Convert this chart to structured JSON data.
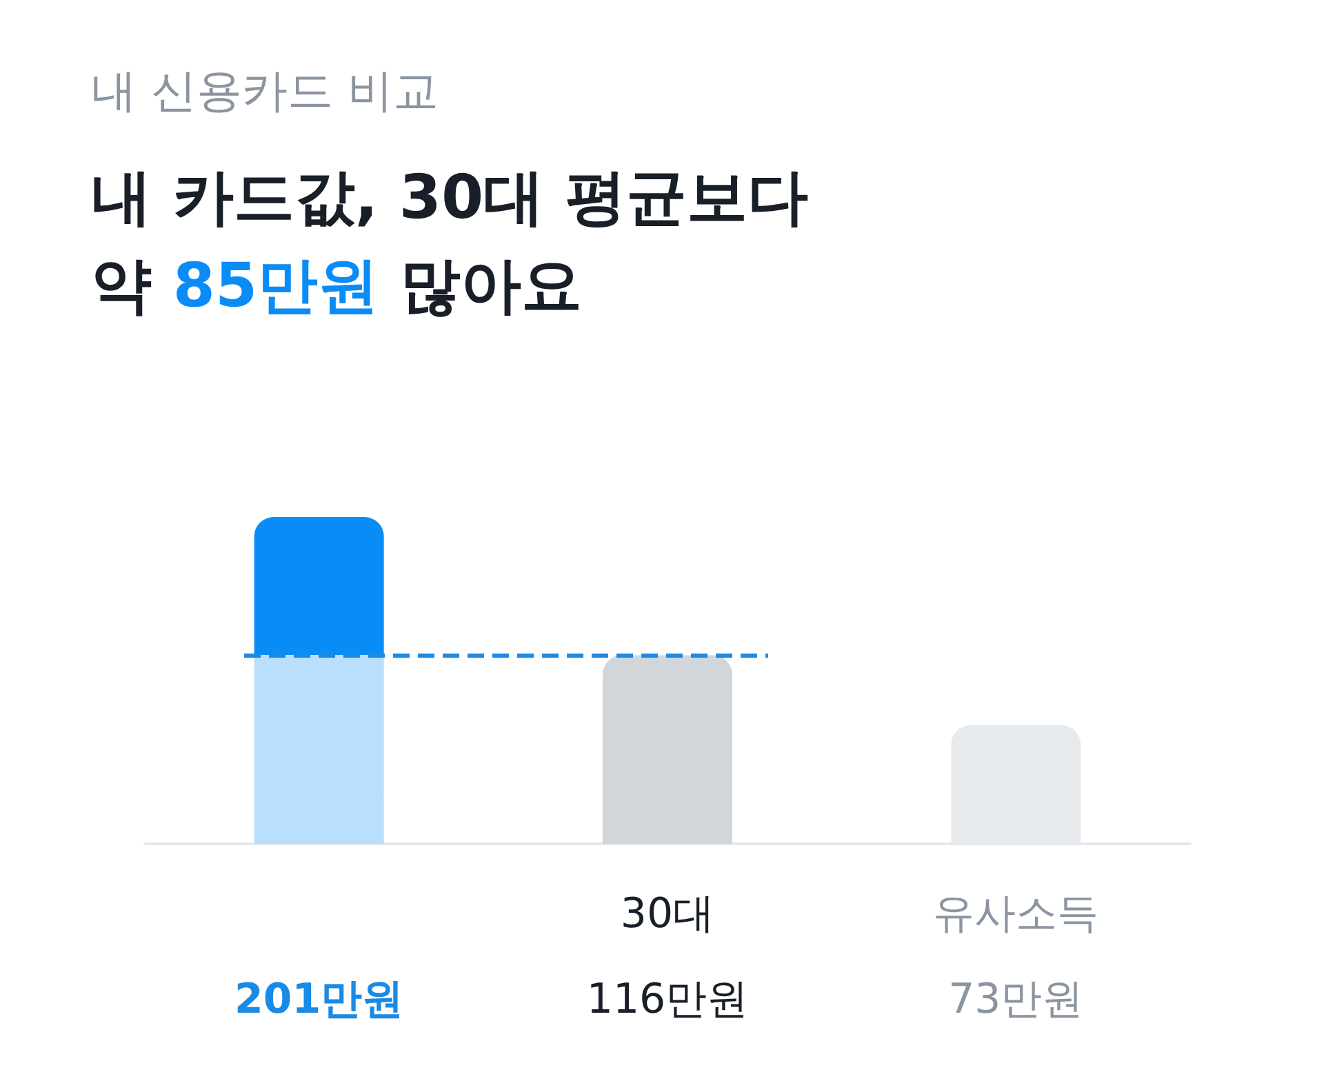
{
  "chart_data": {
    "type": "bar",
    "subtitle": "내 신용카드 비교",
    "title": "내 카드값, 30대 평균보다\n약 85만원 많아요",
    "categories": [
      null,
      "30대",
      "유사소득"
    ],
    "values": [
      201,
      116,
      73
    ],
    "colors": [
      "#0a8cf7",
      "#d1d6db",
      "#e8ebee"
    ],
    "value_labels": [
      "201만원",
      "116만원",
      "73만원"
    ],
    "ref_lines": [
      {
        "axis": "y",
        "value": 116,
        "color": "#1a8ae5",
        "line_style": "dashed"
      }
    ]
  }
}
